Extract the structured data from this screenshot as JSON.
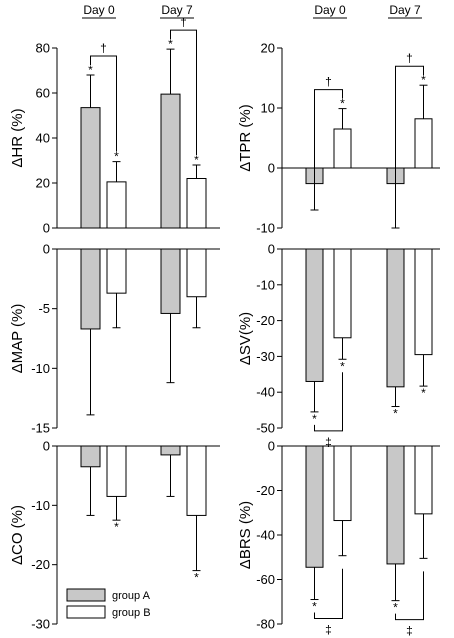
{
  "header": {
    "day0": "Day 0",
    "day7": "Day 7"
  },
  "legend": {
    "group_a": "group A",
    "group_b": "group B"
  },
  "colors": {
    "group_a": "#c8c8c8",
    "group_b": "#ffffff",
    "stroke": "#000000"
  },
  "chart_data": [
    {
      "type": "bar",
      "panel": "HR",
      "ylabel": "ΔHR (%)",
      "categories": [
        "Day 0",
        "Day 7"
      ],
      "ylim": [
        0,
        80
      ],
      "yticks": [
        0,
        20,
        40,
        60,
        80
      ],
      "tick_labels": [
        "0",
        "20",
        "40",
        "60",
        "80"
      ],
      "series": [
        {
          "name": "group A",
          "values": [
            53.5,
            59.5
          ],
          "errors": [
            14.5,
            20.0
          ],
          "sig": [
            "*",
            "*"
          ]
        },
        {
          "name": "group B",
          "values": [
            20.5,
            22.0
          ],
          "errors": [
            9.0,
            6.0
          ],
          "sig": [
            "*",
            "*"
          ]
        }
      ],
      "annotations": [
        {
          "category": 0,
          "mark": "†",
          "type": "top"
        },
        {
          "category": 1,
          "mark": "†",
          "type": "top"
        }
      ]
    },
    {
      "type": "bar",
      "panel": "TPR",
      "ylabel": "ΔTPR (%)",
      "categories": [
        "Day 0",
        "Day 7"
      ],
      "ylim": [
        -10,
        20
      ],
      "yticks": [
        -10,
        0,
        10,
        20
      ],
      "tick_labels": [
        "-10",
        "0",
        "10",
        "20"
      ],
      "series": [
        {
          "name": "group A",
          "values": [
            -2.6,
            -2.6
          ],
          "errors": [
            4.4,
            7.4
          ],
          "sig": [
            "",
            ""
          ]
        },
        {
          "name": "group B",
          "values": [
            6.5,
            8.2
          ],
          "errors": [
            3.4,
            5.6
          ],
          "sig": [
            "*",
            "*"
          ]
        }
      ],
      "annotations": [
        {
          "category": 0,
          "mark": "†",
          "type": "top"
        },
        {
          "category": 1,
          "mark": "†",
          "type": "top"
        }
      ]
    },
    {
      "type": "bar",
      "panel": "MAP",
      "ylabel": "ΔMAP (%)",
      "categories": [
        "Day 0",
        "Day 7"
      ],
      "ylim": [
        -15,
        0
      ],
      "yticks": [
        -15,
        -10,
        -5,
        0
      ],
      "tick_labels": [
        "-15",
        "-10",
        "-5",
        "0"
      ],
      "series": [
        {
          "name": "group A",
          "values": [
            -6.7,
            -5.4
          ],
          "errors": [
            7.2,
            5.8
          ],
          "sig": [
            "",
            ""
          ]
        },
        {
          "name": "group B",
          "values": [
            -3.7,
            -4.0
          ],
          "errors": [
            2.9,
            2.6
          ],
          "sig": [
            "",
            ""
          ]
        }
      ],
      "annotations": []
    },
    {
      "type": "bar",
      "panel": "SV",
      "ylabel": "ΔSV(%)",
      "categories": [
        "Day 0",
        "Day 7"
      ],
      "ylim": [
        -50,
        0
      ],
      "yticks": [
        -50,
        -40,
        -30,
        -20,
        -10,
        0
      ],
      "tick_labels": [
        "-50",
        "-40",
        "-30",
        "-20",
        "-10",
        "0"
      ],
      "series": [
        {
          "name": "group A",
          "values": [
            -37.0,
            -38.5
          ],
          "errors": [
            8.5,
            5.5
          ],
          "sig": [
            "*",
            "*"
          ]
        },
        {
          "name": "group B",
          "values": [
            -24.8,
            -29.5
          ],
          "errors": [
            6.0,
            8.8
          ],
          "sig": [
            "*",
            "*"
          ]
        }
      ],
      "annotations": [
        {
          "category": 0,
          "mark": "‡",
          "type": "bottom"
        }
      ]
    },
    {
      "type": "bar",
      "panel": "CO",
      "ylabel": "ΔCO (%)",
      "categories": [
        "Day 0",
        "Day 7"
      ],
      "ylim": [
        -30,
        0
      ],
      "yticks": [
        -30,
        -20,
        -10,
        0
      ],
      "tick_labels": [
        "-30",
        "-20",
        "-10",
        "0"
      ],
      "series": [
        {
          "name": "group A",
          "values": [
            -3.5,
            -1.5
          ],
          "errors": [
            8.2,
            7.0
          ],
          "sig": [
            "",
            ""
          ]
        },
        {
          "name": "group B",
          "values": [
            -8.5,
            -11.7
          ],
          "errors": [
            4.0,
            9.3
          ],
          "sig": [
            "*",
            "*"
          ]
        }
      ],
      "annotations": []
    },
    {
      "type": "bar",
      "panel": "BRS",
      "ylabel": "ΔBRS (%)",
      "categories": [
        "Day 0",
        "Day 7"
      ],
      "ylim": [
        -80,
        0
      ],
      "yticks": [
        -80,
        -60,
        -40,
        -20,
        0
      ],
      "tick_labels": [
        "-80",
        "-60",
        "-40",
        "-20",
        "0"
      ],
      "series": [
        {
          "name": "group A",
          "values": [
            -54.5,
            -53.0
          ],
          "errors": [
            14.5,
            16.5
          ],
          "sig": [
            "*",
            "*"
          ]
        },
        {
          "name": "group B",
          "values": [
            -33.5,
            -30.5
          ],
          "errors": [
            15.8,
            20.0
          ],
          "sig": [
            "",
            ""
          ]
        }
      ],
      "annotations": [
        {
          "category": 0,
          "mark": "‡",
          "type": "bottom"
        },
        {
          "category": 1,
          "mark": "‡",
          "type": "bottom"
        }
      ]
    }
  ]
}
